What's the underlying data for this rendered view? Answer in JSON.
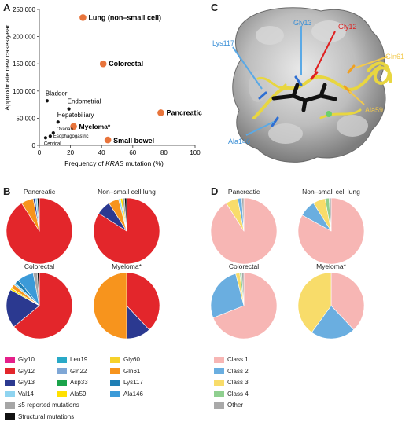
{
  "panels": {
    "a": "A",
    "b": "B",
    "c": "C",
    "d": "D"
  },
  "scatter": {
    "ylabel": "Approximate new cases/year",
    "xlabel_pre": "Frequency of ",
    "xlabel_gene": "KRAS",
    "xlabel_post": " mutation (%)",
    "yticks": [
      "0",
      "50,000",
      "100,000",
      "150,000",
      "200,000",
      "250,000"
    ],
    "xticks": [
      "0",
      "20",
      "40",
      "60",
      "80",
      "100"
    ]
  },
  "chart_data": {
    "type": "scatter",
    "xlabel": "Frequency of KRAS mutation (%)",
    "ylabel": "Approximate new cases/year",
    "xlim": [
      0,
      100
    ],
    "ylim": [
      0,
      250000
    ],
    "points": [
      {
        "label": "Lung (non–small cell)",
        "x": 28,
        "y": 235000,
        "highlight": true
      },
      {
        "label": "Colorectal",
        "x": 41,
        "y": 150000,
        "highlight": true
      },
      {
        "label": "Bladder",
        "x": 5,
        "y": 82000,
        "highlight": false
      },
      {
        "label": "Endometrial",
        "x": 19,
        "y": 67000,
        "highlight": false
      },
      {
        "label": "Pancreatic",
        "x": 78,
        "y": 60000,
        "highlight": true
      },
      {
        "label": "Hepatobiliary",
        "x": 12,
        "y": 43000,
        "highlight": false
      },
      {
        "label": "Myeloma*",
        "x": 22,
        "y": 35000,
        "highlight": true
      },
      {
        "label": "Ovarian",
        "x": 9,
        "y": 23000,
        "highlight": false
      },
      {
        "label": "Esophagogastric",
        "x": 7,
        "y": 17000,
        "highlight": false
      },
      {
        "label": "Cervical",
        "x": 4,
        "y": 14000,
        "highlight": false
      },
      {
        "label": "Small bowel",
        "x": 44,
        "y": 10000,
        "highlight": true
      }
    ]
  },
  "structure_labels": {
    "gly13": "Gly13",
    "gly12": "Gly12",
    "lys117": "Lys117",
    "gln61": "Gln61",
    "ala59": "Ala59",
    "ala146": "Ala146"
  },
  "colors": {
    "highlight": "#e8743b",
    "Gly10": "#e51f8a",
    "Gly12": "#e3262b",
    "Gly13": "#2b3990",
    "Val14": "#8fd4f0",
    "Leu19": "#29a9c7",
    "Gln22": "#7fa7d6",
    "Asp33": "#1aa34a",
    "Ala59": "#ffe000",
    "Gly60": "#f6d12a",
    "Gln61": "#f7941d",
    "Lys117": "#1f7fb5",
    "Ala146": "#3b9ad8",
    "reported5": "#a6a6a6",
    "structural": "#111111",
    "Class 1": "#f7b6b4",
    "Class 2": "#6aaee0",
    "Class 3": "#f8dc6a",
    "Class 4": "#8fcf8f",
    "Other": "#a9a9a9"
  },
  "pies_b": [
    {
      "title": "Pancreatic",
      "slices": [
        {
          "name": "Gly12",
          "value": 91
        },
        {
          "name": "Gln61",
          "value": 6
        },
        {
          "name": "Gly13",
          "value": 1
        },
        {
          "name": "Val14",
          "value": 1
        },
        {
          "name": "structural",
          "value": 1
        }
      ]
    },
    {
      "title": "Non–small cell lung",
      "slices": [
        {
          "name": "Gly12",
          "value": 84
        },
        {
          "name": "Gly13",
          "value": 7
        },
        {
          "name": "Gln61",
          "value": 5
        },
        {
          "name": "Val14",
          "value": 1
        },
        {
          "name": "Ala59",
          "value": 1
        },
        {
          "name": "reported5",
          "value": 1
        },
        {
          "name": "structural",
          "value": 1
        }
      ]
    },
    {
      "title": "Colorectal",
      "slices": [
        {
          "name": "Gly12",
          "value": 64
        },
        {
          "name": "Gly13",
          "value": 19
        },
        {
          "name": "Ala59",
          "value": 1
        },
        {
          "name": "Gln61",
          "value": 2
        },
        {
          "name": "Val14",
          "value": 1
        },
        {
          "name": "Lys117",
          "value": 2
        },
        {
          "name": "Ala146",
          "value": 8
        },
        {
          "name": "reported5",
          "value": 2
        },
        {
          "name": "structural",
          "value": 1
        }
      ]
    },
    {
      "title": "Myeloma*",
      "slices": [
        {
          "name": "Gly12",
          "value": 38
        },
        {
          "name": "Gly13",
          "value": 12
        },
        {
          "name": "Gln61",
          "value": 50
        }
      ]
    }
  ],
  "pies_d": [
    {
      "title": "Pancreatic",
      "slices": [
        {
          "name": "Class 1",
          "value": 91
        },
        {
          "name": "Class 3",
          "value": 6
        },
        {
          "name": "Class 2",
          "value": 2
        },
        {
          "name": "Other",
          "value": 1
        }
      ]
    },
    {
      "title": "Non–small cell lung",
      "slices": [
        {
          "name": "Class 1",
          "value": 83
        },
        {
          "name": "Class 2",
          "value": 8
        },
        {
          "name": "Class 3",
          "value": 6
        },
        {
          "name": "Class 4",
          "value": 2
        },
        {
          "name": "Other",
          "value": 1
        }
      ]
    },
    {
      "title": "Colorectal",
      "slices": [
        {
          "name": "Class 1",
          "value": 69
        },
        {
          "name": "Class 2",
          "value": 27
        },
        {
          "name": "Class 3",
          "value": 2
        },
        {
          "name": "Class 4",
          "value": 1
        },
        {
          "name": "Other",
          "value": 1
        }
      ]
    },
    {
      "title": "Myeloma*",
      "slices": [
        {
          "name": "Class 1",
          "value": 38
        },
        {
          "name": "Class 2",
          "value": 22
        },
        {
          "name": "Class 3",
          "value": 40
        }
      ]
    }
  ],
  "legend_b": [
    [
      "Gly10",
      "Leu19",
      "Gly60"
    ],
    [
      "Gly12",
      "Gln22",
      "Gln61"
    ],
    [
      "Gly13",
      "Asp33",
      "Lys117"
    ],
    [
      "Val14",
      "Ala59",
      "Ala146"
    ]
  ],
  "legend_b_extra": [
    {
      "key": "reported5",
      "label": "≤5 reported mutations"
    },
    {
      "key": "structural",
      "label": "Structural mutations"
    }
  ],
  "legend_d": [
    "Class 1",
    "Class 2",
    "Class 3",
    "Class 4",
    "Other"
  ]
}
